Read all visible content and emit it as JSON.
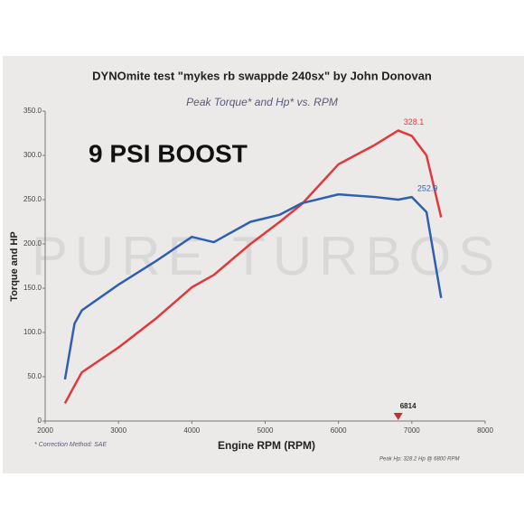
{
  "chart_data": {
    "type": "line",
    "title": "DYNOmite test \"mykes rb swappde 240sx\" by John Donovan",
    "subtitle": "Peak Torque* and Hp* vs. RPM",
    "annotation": "9 PSI BOOST",
    "watermark": "PURE TURBOS",
    "footnote": "* Correction Method: SAE",
    "peak_note": "Peak Hp: 328.2 Hp @ 6800 RPM",
    "rpm_marker": 6814,
    "x_label": "Engine RPM (RPM)",
    "y_label": "Torque and HP",
    "x": [
      2270,
      2400,
      2500,
      3000,
      3500,
      4000,
      4300,
      4800,
      5200,
      5500,
      6000,
      6500,
      6814,
      7000,
      7200,
      7400
    ],
    "series": [
      {
        "color": "#e0393c",
        "values": [
          20,
          40,
          55,
          83,
          115,
          151,
          165,
          200,
          225,
          245,
          290,
          312,
          328.1,
          322,
          300,
          230
        ],
        "peak_index": 12
      },
      {
        "color": "#2f5fb0",
        "values": [
          47,
          110,
          125,
          154,
          180,
          208,
          202,
          225,
          233,
          246,
          256,
          253,
          250,
          252.9,
          236,
          139
        ],
        "peak_index": 13
      }
    ],
    "xlim": [
      2000,
      8000
    ],
    "xticks": [
      2000,
      3000,
      4000,
      5000,
      6000,
      7000,
      8000
    ],
    "ylim": [
      0,
      350
    ],
    "yticks": [
      0,
      {
        "value": 50,
        "label": "50.0"
      },
      {
        "value": 100,
        "label": "100.0"
      },
      {
        "value": 150,
        "label": "150.0"
      },
      {
        "value": 200,
        "label": "200.0"
      },
      {
        "value": 250,
        "label": "250.0"
      },
      {
        "value": 300,
        "label": "300.0"
      },
      {
        "value": 350,
        "label": "350.0"
      }
    ],
    "grid": false
  }
}
